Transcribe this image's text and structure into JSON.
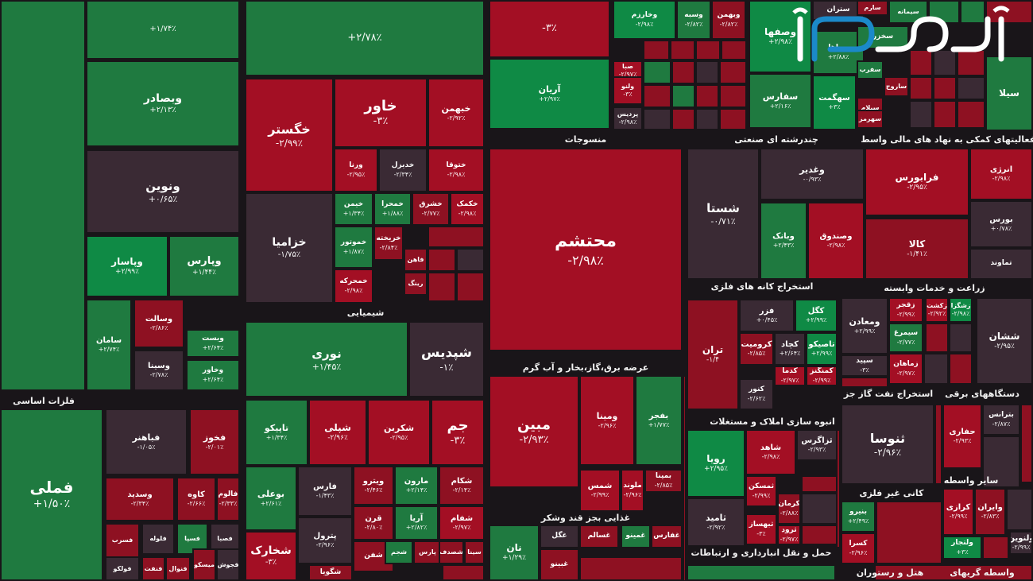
{
  "chart_data": {
    "type": "heatmap",
    "color_scale": {
      "up": "#1f7a40",
      "up_strong": "#0f8a45",
      "down": "#8e1122",
      "down_strong": "#a30f24",
      "neutral": "#3a2a34"
    },
    "sections": [
      {
        "name": "فلزات اساسی"
      },
      {
        "name": "شیمیایی"
      },
      {
        "name": "منسوجات"
      },
      {
        "name": "چندرشته ای صنعتی"
      },
      {
        "name": "فعالیتهای کمکی به نهاد های مالی واسط"
      },
      {
        "name": "عرضه برق،گاز،بخار و آب گرم"
      },
      {
        "name": "استخراج کانه های فلزی"
      },
      {
        "name": "زراعت و خدمات وابسته"
      },
      {
        "name": "استخراج نفت گاز جز"
      },
      {
        "name": "دستگاههای برقی"
      },
      {
        "name": "انبوه سازی املاک و مستغلات"
      },
      {
        "name": "غذایی بجز قند وشکر"
      },
      {
        "name": "سایر واسطه"
      },
      {
        "name": "کانی غیر فلزی"
      },
      {
        "name": "حمل و نقل انبارداری و ارتباطات"
      },
      {
        "name": "هتل و رستوران"
      },
      {
        "name": "واسطه گریهای"
      }
    ],
    "tiles": [
      {
        "name": "",
        "change": "+۱/۷۴٪",
        "trend": "up"
      },
      {
        "name": "",
        "change": "+۲/۷۸٪",
        "trend": "up"
      },
      {
        "name": "",
        "change": "-۳٪",
        "trend": "down"
      },
      {
        "name": "وبصادر",
        "change": "+۲/۱۳٪",
        "trend": "up"
      },
      {
        "name": "ونوین",
        "change": "+۰/۶۵٪",
        "trend": "neutral"
      },
      {
        "name": "وپاسار",
        "change": "+۲/۹۹٪",
        "trend": "up"
      },
      {
        "name": "وپارس",
        "change": "+۱/۴۴٪",
        "trend": "up"
      },
      {
        "name": "سامان",
        "change": "+۲/۷۴٪",
        "trend": "up"
      },
      {
        "name": "وسالت",
        "change": "-۲/۸۶٪",
        "trend": "down"
      },
      {
        "name": "وسینا",
        "change": "-۲/۷۸٪",
        "trend": "neutral"
      },
      {
        "name": "وبست",
        "change": "+۲/۶۴٪",
        "trend": "up"
      },
      {
        "name": "وخاور",
        "change": "+۲/۶۴٪",
        "trend": "up"
      },
      {
        "name": "فملی",
        "change": "+۱/۵۰٪",
        "trend": "up"
      },
      {
        "name": "فباهنر",
        "change": "-۱/۰۵٪",
        "trend": "neutral"
      },
      {
        "name": "فخوز",
        "change": "-۲/۰۱٪",
        "trend": "down"
      },
      {
        "name": "وسدید",
        "change": "-۲/۳۴٪",
        "trend": "down"
      },
      {
        "name": "کاوه",
        "change": "-۲/۶۶٪",
        "trend": "down"
      },
      {
        "name": "فالوم",
        "change": "-۲/۳۳٪",
        "trend": "down"
      },
      {
        "name": "فسرب",
        "change": "",
        "trend": "down"
      },
      {
        "name": "فسپا",
        "change": "",
        "trend": "up"
      },
      {
        "name": "فسوزار",
        "change": "",
        "trend": "neutral"
      },
      {
        "name": "فلوله",
        "change": "",
        "trend": "neutral"
      },
      {
        "name": "فصبا",
        "change": "",
        "trend": "neutral"
      },
      {
        "name": "فنفت",
        "change": "",
        "trend": "down"
      },
      {
        "name": "فنوال",
        "change": "",
        "trend": "down"
      },
      {
        "name": "میسکو",
        "change": "",
        "trend": "down"
      },
      {
        "name": "فجوش",
        "change": "",
        "trend": "neutral"
      },
      {
        "name": "فولکو",
        "change": "",
        "trend": "neutral"
      },
      {
        "name": "ونوکا",
        "change": "",
        "trend": "neutral"
      },
      {
        "name": "خگستر",
        "change": "-۲/۹۹٪",
        "trend": "down"
      },
      {
        "name": "خاور",
        "change": "-۳٪",
        "trend": "down"
      },
      {
        "name": "خبهمن",
        "change": "-۲/۹۲٪",
        "trend": "down"
      },
      {
        "name": "ورنا",
        "change": "-۲/۹۵٪",
        "trend": "down"
      },
      {
        "name": "خدیزل",
        "change": "-۲/۳۴٪",
        "trend": "neutral"
      },
      {
        "name": "ختوقا",
        "change": "-۲/۹۸٪",
        "trend": "down"
      },
      {
        "name": "خزامیا",
        "change": "-۱/۷۵٪",
        "trend": "neutral"
      },
      {
        "name": "خیمن",
        "change": "+۱/۳۴٪",
        "trend": "up"
      },
      {
        "name": "خمحرا",
        "change": "+۱/۸۸٪",
        "trend": "up"
      },
      {
        "name": "خشرق",
        "change": "-۲/۷۷٪",
        "trend": "down"
      },
      {
        "name": "خکمک",
        "change": "-۲/۹۸٪",
        "trend": "down"
      },
      {
        "name": "خموتور",
        "change": "+۱/۸۷٪",
        "trend": "up"
      },
      {
        "name": "خریخته",
        "change": "-۲/۸۴٪",
        "trend": "down"
      },
      {
        "name": "خمحرکه",
        "change": "-۲/۹۸٪",
        "trend": "down"
      },
      {
        "name": "فاهن",
        "change": "",
        "trend": "down"
      },
      {
        "name": "رینگ",
        "change": "",
        "trend": "down"
      },
      {
        "name": "نوری",
        "change": "+۱/۴۵٪",
        "trend": "up"
      },
      {
        "name": "شپدیس",
        "change": "-۱٪",
        "trend": "neutral"
      },
      {
        "name": "تاپیکو",
        "change": "+۱/۳۴٪",
        "trend": "up"
      },
      {
        "name": "شپلی",
        "change": "-۲/۹۶٪",
        "trend": "down"
      },
      {
        "name": "شکربن",
        "change": "-۲/۹۵٪",
        "trend": "down"
      },
      {
        "name": "جم",
        "change": "-۳٪",
        "trend": "down"
      },
      {
        "name": "بوعلی",
        "change": "+۲/۶۱٪",
        "trend": "up"
      },
      {
        "name": "فارس",
        "change": "-۱/۴۳٪",
        "trend": "neutral"
      },
      {
        "name": "ویترو",
        "change": "-۲/۴۶٪",
        "trend": "down"
      },
      {
        "name": "مارون",
        "change": "+۲/۱۴٪",
        "trend": "up"
      },
      {
        "name": "شکام",
        "change": "-۲/۱۴٪",
        "trend": "down"
      },
      {
        "name": "پترول",
        "change": "-۲/۹۶٪",
        "trend": "neutral"
      },
      {
        "name": "قرن",
        "change": "-۲/۸۰٪",
        "trend": "down"
      },
      {
        "name": "آریا",
        "change": "+۲/۸۲٪",
        "trend": "up"
      },
      {
        "name": "شفام",
        "change": "-۲/۹۷٪",
        "trend": "down"
      },
      {
        "name": "شخارک",
        "change": "-۳٪",
        "trend": "down"
      },
      {
        "name": "شفن",
        "change": "",
        "trend": "down"
      },
      {
        "name": "شجم",
        "change": "",
        "trend": "up"
      },
      {
        "name": "پارس",
        "change": "",
        "trend": "down"
      },
      {
        "name": "شصدف",
        "change": "",
        "trend": "down"
      },
      {
        "name": "سینا",
        "change": "",
        "trend": "down"
      },
      {
        "name": "شگویا",
        "change": "",
        "trend": "down"
      },
      {
        "name": "آریان",
        "change": "+۲/۹۷٪",
        "trend": "up"
      },
      {
        "name": "محتشم",
        "change": "-۲/۹۸٪",
        "trend": "down"
      },
      {
        "name": "مبین",
        "change": "-۲/۹۳٪",
        "trend": "down"
      },
      {
        "name": "ومینا",
        "change": "-۲/۹۶٪",
        "trend": "down"
      },
      {
        "name": "بفجر",
        "change": "+۱/۷۷٪",
        "trend": "up"
      },
      {
        "name": "شمس",
        "change": "-۲/۹۹٪",
        "trend": "down"
      },
      {
        "name": "ملوند",
        "change": "-۲/۹۶٪",
        "trend": "down"
      },
      {
        "name": "بمپنا",
        "change": "-۲/۸۵٪",
        "trend": "down"
      },
      {
        "name": "نان",
        "change": "+۱/۲۹٪",
        "trend": "up"
      },
      {
        "name": "غگل",
        "change": "",
        "trend": "neutral"
      },
      {
        "name": "غسالم",
        "change": "",
        "trend": "down"
      },
      {
        "name": "غمینو",
        "change": "",
        "trend": "up"
      },
      {
        "name": "غفارس",
        "change": "",
        "trend": "down"
      },
      {
        "name": "غبینو",
        "change": "",
        "trend": "down"
      },
      {
        "name": "وخارزم",
        "change": "-۲/۹۸٪",
        "trend": "up"
      },
      {
        "name": "وسبه",
        "change": "-۲/۸۲٪",
        "trend": "up"
      },
      {
        "name": "وبهمن",
        "change": "-۲/۸۲٪",
        "trend": "down"
      },
      {
        "name": "صبا",
        "change": "-۲/۹۷٪",
        "trend": "down"
      },
      {
        "name": "ولنو",
        "change": "-۳٪",
        "trend": "down"
      },
      {
        "name": "پردیس",
        "change": "-۲/۹۸٪",
        "trend": "neutral"
      },
      {
        "name": "وغدیر",
        "change": "-۰/۹۳٪",
        "trend": "neutral"
      },
      {
        "name": "شستا",
        "change": "-۰/۷۱٪",
        "trend": "neutral"
      },
      {
        "name": "وبانک",
        "change": "+۲/۴۳٪",
        "trend": "up"
      },
      {
        "name": "وصندوق",
        "change": "-۲/۹۸٪",
        "trend": "down"
      },
      {
        "name": "فرابورس",
        "change": "-۲/۹۵٪",
        "trend": "down"
      },
      {
        "name": "انرژی",
        "change": "-۲/۹۸٪",
        "trend": "down"
      },
      {
        "name": "کالا",
        "change": "-۱/۴۱٪",
        "trend": "down"
      },
      {
        "name": "بورس",
        "change": "+۰/۷۸٪",
        "trend": "neutral"
      },
      {
        "name": "تماوند",
        "change": "",
        "trend": "neutral"
      },
      {
        "name": "وصفها",
        "change": "+۲/۹۸٪",
        "trend": "up"
      },
      {
        "name": "ستران",
        "change": "",
        "trend": "neutral"
      },
      {
        "name": "سپاها",
        "change": "+۲/۸۸٪",
        "trend": "up"
      },
      {
        "name": "سفارس",
        "change": "+۲/۱۶٪",
        "trend": "up"
      },
      {
        "name": "سهگمت",
        "change": "+۳٪",
        "trend": "up"
      },
      {
        "name": "سخزر",
        "change": "",
        "trend": "up"
      },
      {
        "name": "سفرب",
        "change": "",
        "trend": "up"
      },
      {
        "name": "ساروج",
        "change": "",
        "trend": "down"
      },
      {
        "name": "سیلام",
        "change": "",
        "trend": "down"
      },
      {
        "name": "سهرمز",
        "change": "",
        "trend": "down"
      },
      {
        "name": "سارم",
        "change": "",
        "trend": "down"
      },
      {
        "name": "سیمانه",
        "change": "",
        "trend": "up"
      },
      {
        "name": "سیلا",
        "change": "",
        "trend": "up"
      },
      {
        "name": "تران",
        "change": "-۱/۴",
        "trend": "down"
      },
      {
        "name": "فزر",
        "change": "+۰/۴۵٪",
        "trend": "neutral"
      },
      {
        "name": "کگل",
        "change": "+۲/۹۹٪",
        "trend": "up"
      },
      {
        "name": "کرومیت",
        "change": "-۲/۸۵٪",
        "trend": "down"
      },
      {
        "name": "کچاد",
        "change": "+۲/۶۴٪",
        "trend": "neutral"
      },
      {
        "name": "تاصیکو",
        "change": "+۲/۹۹٪",
        "trend": "up"
      },
      {
        "name": "کمنگنز",
        "change": "-۲/۹۹٪",
        "trend": "down"
      },
      {
        "name": "کدما",
        "change": "-۲/۹۷٪",
        "trend": "down"
      },
      {
        "name": "کنور",
        "change": "-۲/۶۲٪",
        "trend": "neutral"
      },
      {
        "name": "ومعادن",
        "change": "+۲/۹۹٪",
        "trend": "neutral"
      },
      {
        "name": "زقجر",
        "change": "-۲/۹۹٪",
        "trend": "down"
      },
      {
        "name": "زکشت",
        "change": "-۲/۹۲٪",
        "trend": "down"
      },
      {
        "name": "زشگزا",
        "change": "-۲/۹۸٪",
        "trend": "up"
      },
      {
        "name": "سیمرغ",
        "change": "-۲/۷۷٪",
        "trend": "up"
      },
      {
        "name": "سپید",
        "change": "-۳٪",
        "trend": "neutral"
      },
      {
        "name": "زماهان",
        "change": "-۲/۹۷٪",
        "trend": "down"
      },
      {
        "name": "ششان",
        "change": "-۲/۹۵٪",
        "trend": "neutral"
      },
      {
        "name": "رویا",
        "change": "+۲/۹۵٪",
        "trend": "up"
      },
      {
        "name": "شاهد",
        "change": "-۲/۹۸٪",
        "trend": "down"
      },
      {
        "name": "ثزاگرس",
        "change": "-۲/۹۳٪",
        "trend": "neutral"
      },
      {
        "name": "ثمسکن",
        "change": "-۲/۹۹٪",
        "trend": "down"
      },
      {
        "name": "کرمان",
        "change": "-۲/۸۸٪",
        "trend": "down"
      },
      {
        "name": "ثامید",
        "change": "-۲/۹۲٪",
        "trend": "neutral"
      },
      {
        "name": "ثبهساز",
        "change": "-۳٪",
        "trend": "down"
      },
      {
        "name": "ثرود",
        "change": "-۲/۹۷٪",
        "trend": "down"
      },
      {
        "name": "ثنوسا",
        "change": "-۲/۹۶٪",
        "trend": "neutral"
      },
      {
        "name": "حفاری",
        "change": "-۲/۹۳٪",
        "trend": "down"
      },
      {
        "name": "بترانس",
        "change": "-۲/۸۷٪",
        "trend": "neutral"
      },
      {
        "name": "بنیرو",
        "change": "+۲/۴۹٪",
        "trend": "up"
      },
      {
        "name": "کسرا",
        "change": "-۲/۹۶٪",
        "trend": "down"
      },
      {
        "name": "کرازی",
        "change": "-۲/۹۹٪",
        "trend": "down"
      },
      {
        "name": "وایران",
        "change": "-۲/۸۳٪",
        "trend": "down"
      },
      {
        "name": "ولتجار",
        "change": "+۳٪",
        "trend": "up"
      },
      {
        "name": "ولنوین",
        "change": "-۲/۹۹٪",
        "trend": "neutral"
      },
      {
        "name": "ر",
        "change": "",
        "trend": "down"
      }
    ]
  },
  "logo": {
    "name": "eghtesad-online-logo"
  }
}
